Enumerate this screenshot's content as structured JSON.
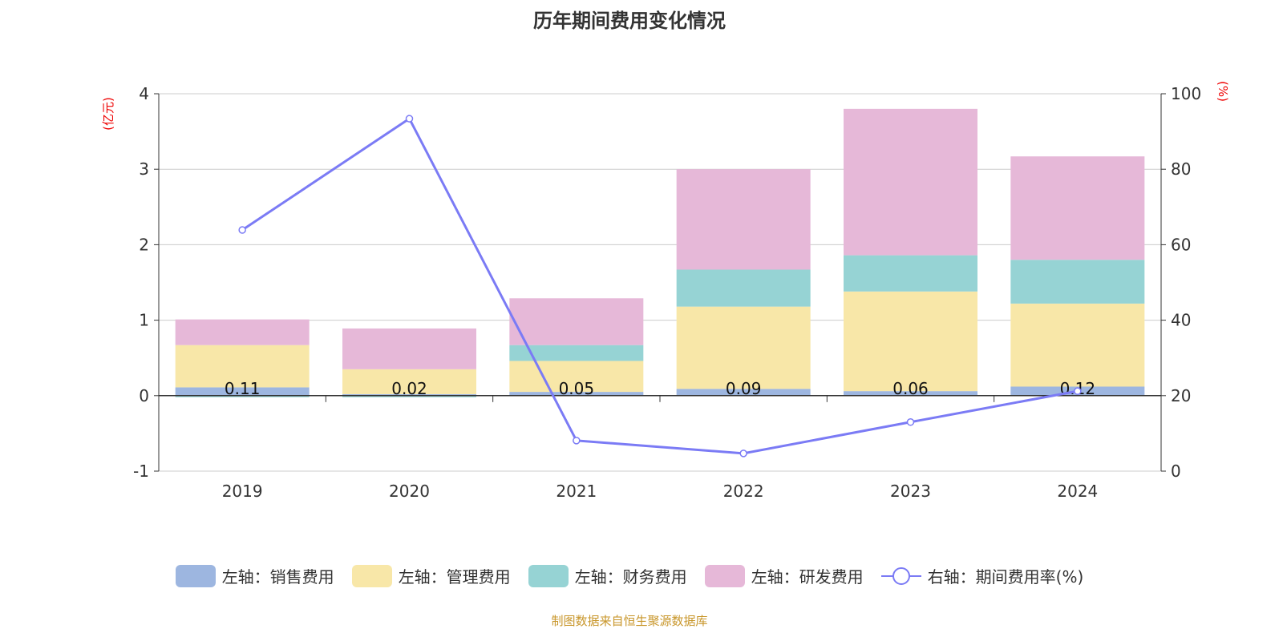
{
  "chart_data": {
    "type": "bar",
    "title": "历年期间费用变化情况",
    "categories": [
      "2019",
      "2020",
      "2021",
      "2022",
      "2023",
      "2024"
    ],
    "left_axis": {
      "unit_label": "(亿元)",
      "ylim": [
        -1,
        4
      ],
      "ticks": [
        "-1",
        "0",
        "1",
        "2",
        "3",
        "4"
      ]
    },
    "right_axis": {
      "unit_label": "(%)",
      "ylim": [
        0,
        100
      ],
      "ticks": [
        "0",
        "20",
        "40",
        "60",
        "80",
        "100"
      ]
    },
    "stacked": true,
    "grid": true,
    "legend_position": "bottom",
    "series": [
      {
        "name": "左轴：销售费用",
        "type": "bar",
        "axis": "left",
        "color": "#9db6e0",
        "values": [
          0.11,
          0.02,
          0.05,
          0.09,
          0.06,
          0.12
        ],
        "data_labels": [
          "0.11",
          "0.02",
          "0.05",
          "0.09",
          "0.06",
          "0.12"
        ]
      },
      {
        "name": "左轴：管理费用",
        "type": "bar",
        "axis": "left",
        "color": "#f8e7a8",
        "values": [
          0.56,
          0.33,
          0.41,
          1.09,
          1.32,
          1.1
        ]
      },
      {
        "name": "左轴：财务费用",
        "type": "bar",
        "axis": "left",
        "color": "#96d3d4",
        "values": [
          -0.02,
          -0.02,
          0.21,
          0.49,
          0.48,
          0.58
        ]
      },
      {
        "name": "左轴：研发费用",
        "type": "bar",
        "axis": "left",
        "color": "#e6b8d8",
        "values": [
          0.34,
          0.54,
          0.62,
          1.33,
          1.94,
          1.37
        ]
      },
      {
        "name": "右轴：期间费用率(%)",
        "type": "line",
        "axis": "right",
        "color": "#7b7bf5",
        "values": [
          63.9,
          93.4,
          8.1,
          4.7,
          13.0,
          21.2
        ]
      }
    ]
  },
  "source": "制图数据来自恒生聚源数据库"
}
